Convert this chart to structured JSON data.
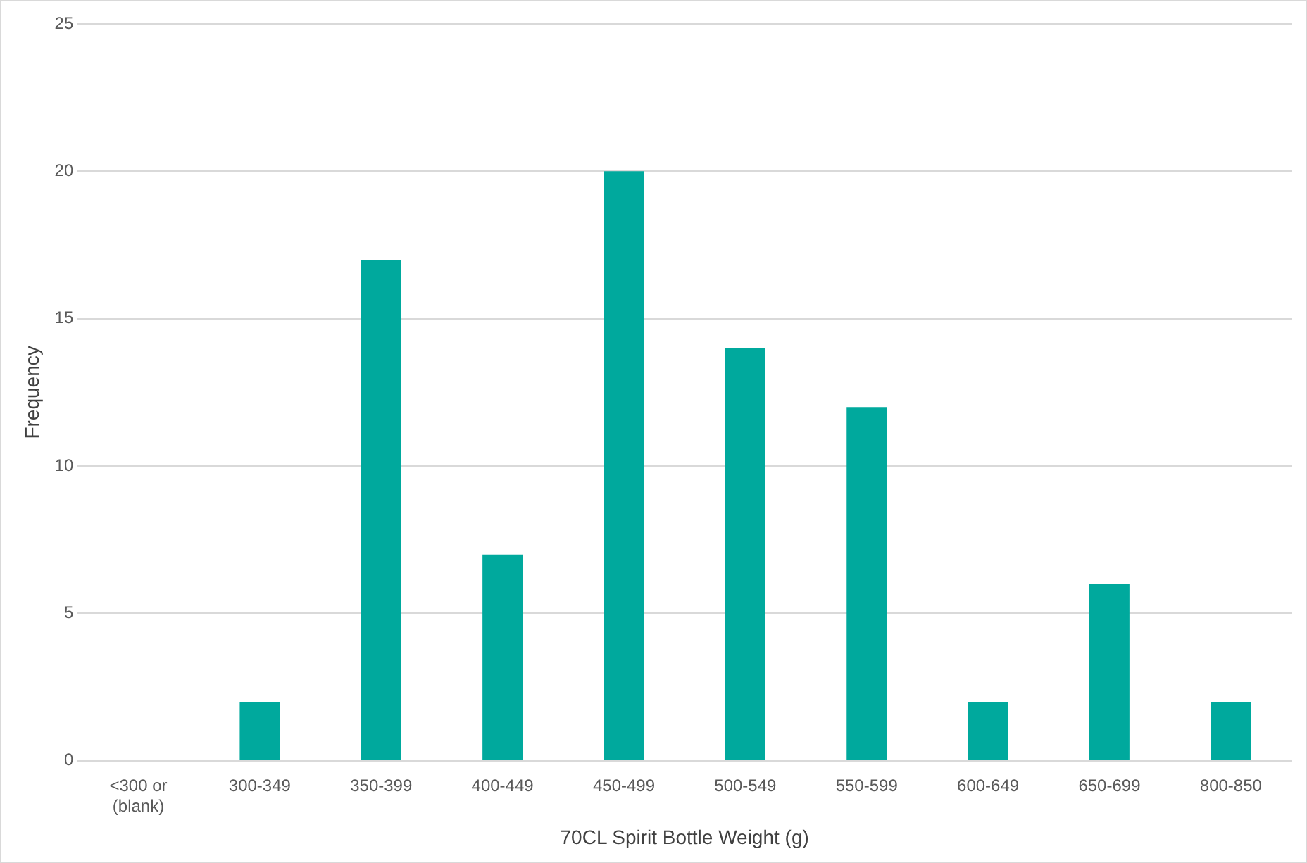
{
  "chart_data": {
    "type": "bar",
    "categories": [
      "<300 or (blank)",
      "300-349",
      "350-399",
      "400-449",
      "450-499",
      "500-549",
      "550-599",
      "600-649",
      "650-699",
      "800-850"
    ],
    "values": [
      0,
      2,
      17,
      7,
      20,
      14,
      12,
      2,
      6,
      2
    ],
    "color": "#00a99d",
    "xlabel": "70CL Spirit Bottle Weight (g)",
    "ylabel": "Frequency",
    "ylim": [
      0,
      25
    ],
    "yticks": [
      0,
      5,
      10,
      15,
      20,
      25
    ],
    "grid": "y",
    "legend": false
  }
}
